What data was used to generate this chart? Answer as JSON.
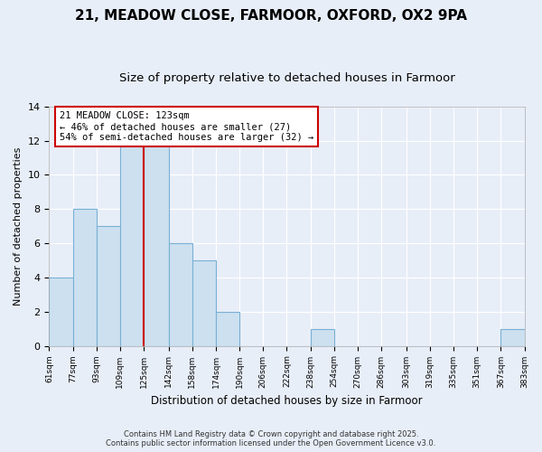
{
  "title": "21, MEADOW CLOSE, FARMOOR, OXFORD, OX2 9PA",
  "subtitle": "Size of property relative to detached houses in Farmoor",
  "bin_edges": [
    61,
    77,
    93,
    109,
    125,
    142,
    158,
    174,
    190,
    206,
    222,
    238,
    254,
    270,
    286,
    303,
    319,
    335,
    351,
    367,
    383
  ],
  "bin_labels": [
    "61sqm",
    "77sqm",
    "93sqm",
    "109sqm",
    "125sqm",
    "142sqm",
    "158sqm",
    "174sqm",
    "190sqm",
    "206sqm",
    "222sqm",
    "238sqm",
    "254sqm",
    "270sqm",
    "286sqm",
    "303sqm",
    "319sqm",
    "335sqm",
    "351sqm",
    "367sqm",
    "383sqm"
  ],
  "bar_heights": [
    4,
    8,
    7,
    12,
    12,
    6,
    5,
    2,
    0,
    0,
    0,
    1,
    0,
    0,
    0,
    0,
    0,
    0,
    0,
    1
  ],
  "bar_color": "#cce0f0",
  "bar_edgecolor": "#7ab0d4",
  "property_line_x": 125,
  "property_line_color": "#cc0000",
  "ylabel": "Number of detached properties",
  "xlabel": "Distribution of detached houses by size in Farmoor",
  "ylim": [
    0,
    14
  ],
  "annotation_line1": "21 MEADOW CLOSE: 123sqm",
  "annotation_line2": "← 46% of detached houses are smaller (27)",
  "annotation_line3": "54% of semi-detached houses are larger (32) →",
  "annotation_box_edgecolor": "#cc0000",
  "annotation_box_facecolor": "#ffffff",
  "footer_line1": "Contains HM Land Registry data © Crown copyright and database right 2025.",
  "footer_line2": "Contains public sector information licensed under the Open Government Licence v3.0.",
  "background_color": "#e8eef8",
  "grid_color": "#ffffff",
  "title_fontsize": 11,
  "subtitle_fontsize": 9.5
}
